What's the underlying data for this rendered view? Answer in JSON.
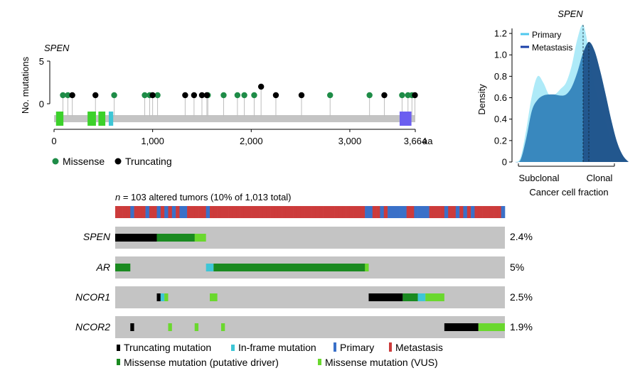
{
  "lollipop": {
    "gene": "SPEN",
    "ylabel": "No. mutations",
    "yticks": [
      "0",
      "5"
    ],
    "xticks": [
      {
        "v": 0,
        "label": "0"
      },
      {
        "v": 1000,
        "label": "1,000"
      },
      {
        "v": 2000,
        "label": "2,000"
      },
      {
        "v": 3000,
        "label": "3,000"
      },
      {
        "v": 3664,
        "label": "3,664"
      }
    ],
    "unit": "aa",
    "legend": [
      {
        "label": "Missense",
        "color": "#1e8c47"
      },
      {
        "label": "Truncating",
        "color": "#000000"
      }
    ]
  },
  "density": {
    "title": "SPEN",
    "ylabel": "Density",
    "xlabel": "Cancer cell fraction",
    "xticklabels": [
      "Subclonal",
      "Clonal"
    ],
    "yticks": [
      "0",
      "0.2",
      "0.4",
      "0.6",
      "0.8",
      "1.0",
      "1.2"
    ],
    "legend": [
      {
        "label": "Primary",
        "color": "#4fc8ee"
      },
      {
        "label": "Metastasis",
        "color": "#1a3fa8"
      }
    ]
  },
  "oncoprint": {
    "header": "n = 103 altered tumors (10% of 1,013 total)",
    "header_n": "n",
    "header_rest": " = 103 altered tumors (10% of 1,013 total)",
    "genes": [
      {
        "name": "SPEN",
        "pct": "2.4%"
      },
      {
        "name": "AR",
        "pct": "5%"
      },
      {
        "name": "NCOR1",
        "pct": "2.5%"
      },
      {
        "name": "NCOR2",
        "pct": "1.9%"
      }
    ],
    "legend": [
      {
        "label": "Truncating mutation",
        "color": "#000000"
      },
      {
        "label": "In-frame mutation",
        "color": "#3ec6d6"
      },
      {
        "label": "Primary",
        "color": "#3a70c8"
      },
      {
        "label": "Metastasis",
        "color": "#cc3b3b"
      },
      {
        "label": "Missense mutation (putative driver)",
        "color": "#1a8a20"
      },
      {
        "label": "Missense mutation (VUS)",
        "color": "#6ad82e"
      }
    ]
  },
  "colors": {
    "missense": "#1e8c47",
    "truncating": "#000000",
    "primary": "#3a70c8",
    "metastasis": "#cc3b3b",
    "driver": "#1a8a20",
    "vus": "#6ad82e",
    "inframe": "#3ec6d6",
    "track": "#c4c4c4",
    "domain_green": "#3cd12b",
    "domain_cyan": "#3ec6d6",
    "domain_blue": "#6b5ef0"
  },
  "chart_data": [
    {
      "type": "scatter",
      "title": "SPEN",
      "ylabel": "No. mutations",
      "xlabel": "aa",
      "xlim": [
        0,
        3664
      ],
      "ylim": [
        0,
        5
      ],
      "series": [
        {
          "name": "Missense",
          "x": [
            90,
            140,
            610,
            920,
            970,
            1050,
            1560,
            1720,
            1860,
            1930,
            2030,
            2800,
            3200,
            3530,
            3590,
            3630
          ],
          "y": [
            1,
            1,
            1,
            1,
            1,
            1,
            1,
            1,
            1,
            1,
            1,
            1,
            1,
            1,
            1,
            1
          ]
        },
        {
          "name": "Truncating",
          "x": [
            185,
            420,
            1000,
            1330,
            1420,
            1500,
            1550,
            2100,
            2250,
            2510,
            3350,
            3660
          ],
          "y": [
            1,
            1,
            1,
            1,
            1,
            1,
            1,
            2,
            1,
            1,
            1,
            1
          ]
        }
      ],
      "domains": [
        {
          "start": 20,
          "end": 95,
          "color": "green"
        },
        {
          "start": 340,
          "end": 425,
          "color": "green"
        },
        {
          "start": 450,
          "end": 520,
          "color": "green"
        },
        {
          "start": 555,
          "end": 600,
          "color": "cyan"
        },
        {
          "start": 3505,
          "end": 3625,
          "color": "blue"
        }
      ]
    },
    {
      "type": "area",
      "title": "SPEN",
      "xlabel": "Cancer cell fraction",
      "ylabel": "Density",
      "ylim": [
        0,
        1.3
      ],
      "x": [
        0,
        0.05,
        0.1,
        0.15,
        0.2,
        0.25,
        0.3,
        0.35,
        0.4,
        0.45,
        0.5,
        0.55,
        0.6,
        0.65,
        0.7,
        0.75,
        0.8,
        0.85,
        0.9,
        0.95,
        1.0
      ],
      "series": [
        {
          "name": "Primary",
          "values": [
            0,
            0.04,
            0.3,
            0.62,
            0.8,
            0.74,
            0.63,
            0.63,
            0.68,
            0.74,
            0.9,
            1.15,
            1.28,
            1.05,
            0.72,
            0.52,
            0.36,
            0.2,
            0.1,
            0.03,
            0
          ]
        },
        {
          "name": "Metastasis",
          "values": [
            0,
            0.02,
            0.22,
            0.48,
            0.58,
            0.62,
            0.63,
            0.63,
            0.62,
            0.63,
            0.7,
            0.84,
            1.02,
            1.12,
            1.04,
            0.85,
            0.62,
            0.38,
            0.18,
            0.06,
            0
          ]
        }
      ]
    },
    {
      "type": "heatmap",
      "title": "n = 103 altered tumors (10% of 1,013 total)",
      "n_samples": 103,
      "categories": [
        "SPEN",
        "AR",
        "NCOR1",
        "NCOR2"
      ],
      "percent": [
        "2.4%",
        "5%",
        "2.5%",
        "1.9%"
      ],
      "sample_type": [
        "M",
        "M",
        "M",
        "M",
        "P",
        "M",
        "M",
        "M",
        "P",
        "M",
        "M",
        "P",
        "M",
        "P",
        "M",
        "P",
        "M",
        "P",
        "P",
        "M",
        "M",
        "M",
        "M",
        "M",
        "P",
        "M",
        "M",
        "M",
        "M",
        "M",
        "M",
        "M",
        "M",
        "M",
        "M",
        "M",
        "M",
        "M",
        "M",
        "M",
        "M",
        "M",
        "M",
        "M",
        "M",
        "M",
        "M",
        "M",
        "M",
        "M",
        "M",
        "M",
        "M",
        "M",
        "M",
        "M",
        "M",
        "M",
        "M",
        "M",
        "M",
        "M",
        "M",
        "M",
        "M",
        "M",
        "P",
        "P",
        "M",
        "M",
        "P",
        "M",
        "P",
        "P",
        "P",
        "P",
        "P",
        "M",
        "M",
        "P",
        "P",
        "P",
        "P",
        "M",
        "M",
        "M",
        "M",
        "P",
        "M",
        "M",
        "P",
        "M",
        "P",
        "M",
        "P",
        "M",
        "M",
        "M",
        "M",
        "M",
        "M",
        "M",
        "P"
      ],
      "alterations": {
        "SPEN": [
          [
            "T",
            0,
            10
          ],
          [
            "D",
            11,
            21
          ],
          [
            "V",
            21,
            23
          ]
        ],
        "AR": [
          [
            "D",
            0,
            3
          ],
          [
            "I",
            24,
            25
          ],
          [
            "D",
            26,
            66
          ],
          [
            "V",
            66,
            66
          ]
        ],
        "NCOR1": [
          [
            "T",
            11,
            11
          ],
          [
            "I",
            12,
            12
          ],
          [
            "V",
            13,
            13
          ],
          [
            "V",
            25,
            26
          ],
          [
            "T",
            67,
            75
          ],
          [
            "D",
            76,
            79
          ],
          [
            "I",
            80,
            81
          ],
          [
            "V",
            82,
            86
          ]
        ],
        "NCOR2": [
          [
            "T",
            4,
            4
          ],
          [
            "V",
            14,
            14
          ],
          [
            "V",
            21,
            21
          ],
          [
            "V",
            28,
            28
          ],
          [
            "T",
            87,
            95
          ],
          [
            "V",
            96,
            102
          ]
        ]
      },
      "legend": [
        "Truncating mutation",
        "In-frame mutation",
        "Primary",
        "Metastasis",
        "Missense mutation (putative driver)",
        "Missense mutation (VUS)"
      ]
    }
  ]
}
